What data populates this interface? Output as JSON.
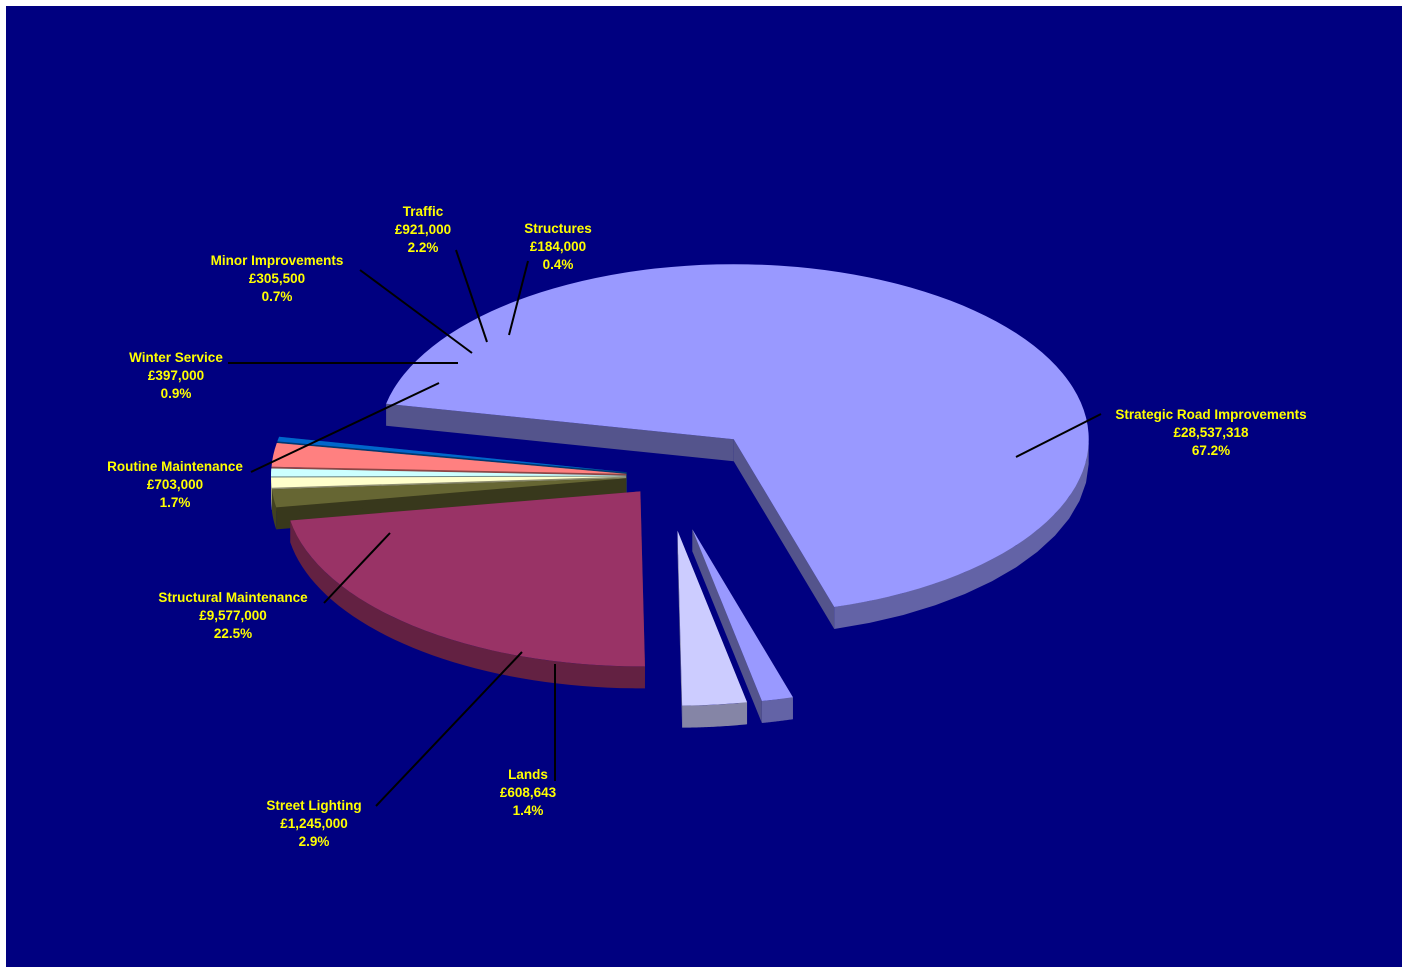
{
  "chart_data": {
    "type": "pie",
    "style": "3d-exploded",
    "title": "",
    "slices": [
      {
        "name": "Strategic Road Improvements",
        "value_text": "£28,537,318",
        "value": 28537318,
        "percent_text": "67.2%",
        "percent": 67.2,
        "color": "#9999ff"
      },
      {
        "name": "Lands",
        "value_text": "£608,643",
        "value": 608643,
        "percent_text": "1.4%",
        "percent": 1.4,
        "color": "#9999ff"
      },
      {
        "name": "Street Lighting",
        "value_text": "£1,245,000",
        "value": 1245000,
        "percent_text": "2.9%",
        "percent": 2.9,
        "color": "#ccccff"
      },
      {
        "name": "Structural Maintenance",
        "value_text": "£9,577,000",
        "value": 9577000,
        "percent_text": "22.5%",
        "percent": 22.5,
        "color": "#993366"
      },
      {
        "name": "Routine Maintenance",
        "value_text": "£703,000",
        "value": 703000,
        "percent_text": "1.7%",
        "percent": 1.7,
        "color": "#666633"
      },
      {
        "name": "Winter Service",
        "value_text": "£397,000",
        "value": 397000,
        "percent_text": "0.9%",
        "percent": 0.9,
        "color": "#ffffcc"
      },
      {
        "name": "Minor Improvements",
        "value_text": "£305,500",
        "value": 305500,
        "percent_text": "0.7%",
        "percent": 0.7,
        "color": "#ccffff"
      },
      {
        "name": "Traffic",
        "value_text": "£921,000",
        "value": 921000,
        "percent_text": "2.2%",
        "percent": 2.2,
        "color": "#ff8080"
      },
      {
        "name": "Structures",
        "value_text": "£184,000",
        "value": 184000,
        "percent_text": "0.4%",
        "percent": 0.4,
        "color": "#0066cc"
      }
    ]
  },
  "colors": {
    "background": "#000080",
    "label_text": "#ffff00",
    "leader_line": "#000000",
    "slice_dark_between": "#660066"
  }
}
